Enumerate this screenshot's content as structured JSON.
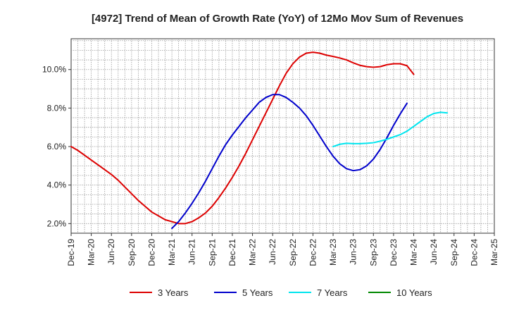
{
  "chart_data": {
    "type": "line",
    "title": "[4972]  Trend of Mean of Growth Rate (YoY) of 12Mo Mov Sum of Revenues",
    "xlabel": "",
    "ylabel": "",
    "x_ticks": [
      "Dec-19",
      "Mar-20",
      "Jun-20",
      "Sep-20",
      "Dec-20",
      "Mar-21",
      "Jun-21",
      "Sep-21",
      "Dec-21",
      "Mar-22",
      "Jun-22",
      "Sep-22",
      "Dec-22",
      "Mar-23",
      "Jun-23",
      "Sep-23",
      "Dec-23",
      "Mar-24",
      "Jun-24",
      "Sep-24",
      "Dec-24",
      "Mar-25"
    ],
    "y_ticks": [
      2.0,
      4.0,
      6.0,
      8.0,
      10.0
    ],
    "y_tick_labels": [
      "2.0%",
      "4.0%",
      "6.0%",
      "8.0%",
      "10.0%"
    ],
    "ylim": [
      1.5,
      11.6
    ],
    "grid": true,
    "legend_position": "bottom",
    "series": [
      {
        "name": "3 Years",
        "color": "#dd0000",
        "start_index": 0,
        "values": [
          6.0,
          5.8,
          5.55,
          5.3,
          5.05,
          4.8,
          4.55,
          4.25,
          3.9,
          3.55,
          3.2,
          2.9,
          2.6,
          2.4,
          2.2,
          2.1,
          2.0,
          2.0,
          2.1,
          2.3,
          2.55,
          2.9,
          3.35,
          3.85,
          4.4,
          5.0,
          5.65,
          6.35,
          7.05,
          7.75,
          8.45,
          9.15,
          9.8,
          10.3,
          10.65,
          10.85,
          10.9,
          10.85,
          10.75,
          10.68,
          10.6,
          10.5,
          10.35,
          10.22,
          10.15,
          10.12,
          10.15,
          10.25,
          10.3,
          10.3,
          10.2,
          9.75
        ]
      },
      {
        "name": "5 Years",
        "color": "#0000cc",
        "start_index": 15,
        "values": [
          1.75,
          2.1,
          2.55,
          3.05,
          3.6,
          4.2,
          4.85,
          5.5,
          6.1,
          6.6,
          7.05,
          7.5,
          7.9,
          8.3,
          8.55,
          8.7,
          8.7,
          8.55,
          8.3,
          8.0,
          7.6,
          7.1,
          6.55,
          6.0,
          5.5,
          5.1,
          4.85,
          4.75,
          4.8,
          5.0,
          5.35,
          5.85,
          6.45,
          7.1,
          7.7,
          8.25
        ]
      },
      {
        "name": "7 Years",
        "color": "#00e5ee",
        "start_index": 39,
        "values": [
          6.0,
          6.12,
          6.17,
          6.15,
          6.15,
          6.17,
          6.2,
          6.28,
          6.38,
          6.5,
          6.62,
          6.8,
          7.05,
          7.3,
          7.55,
          7.72,
          7.78,
          7.75
        ]
      },
      {
        "name": "10 Years",
        "color": "#008800",
        "start_index": 0,
        "values": []
      }
    ]
  }
}
